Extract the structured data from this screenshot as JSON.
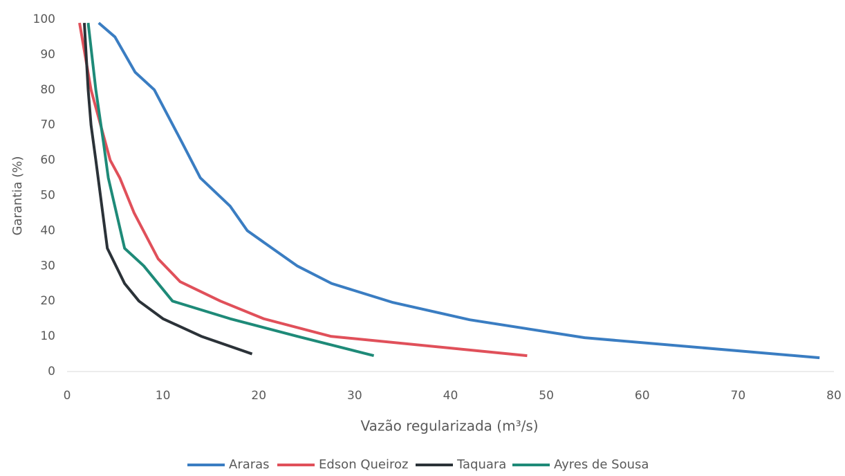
{
  "chart_data": {
    "type": "line",
    "xlabel": "Vazão regularizada (m³/s)",
    "ylabel": "Garantia (%)",
    "xlim": [
      0,
      80
    ],
    "xticks": [
      0,
      10,
      20,
      30,
      40,
      50,
      60,
      70,
      80
    ],
    "ylim": [
      0,
      100
    ],
    "yticks": [
      0,
      10,
      20,
      30,
      40,
      50,
      60,
      70,
      80,
      90,
      100
    ],
    "legend": "bottom",
    "series": [
      {
        "name": "Araras",
        "color": "#3a7dc2",
        "x": [
          3.3,
          5,
          7.1,
          9.1,
          12,
          13.9,
          17,
          18.8,
          24,
          27.6,
          34,
          42,
          54,
          78.5
        ],
        "values": [
          99,
          95,
          85,
          80,
          65,
          55,
          47,
          40,
          30,
          25,
          19.6,
          14.7,
          9.6,
          3.9
        ]
      },
      {
        "name": "Edson Queiroz",
        "color": "#e0505a",
        "x": [
          1.3,
          2.5,
          3.5,
          4.5,
          5.5,
          7,
          9.5,
          11.8,
          16,
          20.5,
          27.5,
          48
        ],
        "values": [
          99,
          80,
          70,
          60,
          55,
          45,
          32,
          25.5,
          20,
          15,
          10,
          4.5
        ]
      },
      {
        "name": "Taquara",
        "color": "#2b3238",
        "x": [
          1.8,
          2.2,
          2.5,
          3,
          4.2,
          6,
          7.5,
          10,
          14,
          19.3
        ],
        "values": [
          99,
          80,
          70,
          60,
          35,
          25,
          20,
          15,
          10,
          5
        ]
      },
      {
        "name": "Ayres de Sousa",
        "color": "#1e8a78",
        "x": [
          2.2,
          3,
          3.8,
          4.3,
          6,
          8,
          11,
          17,
          24,
          32
        ],
        "values": [
          99,
          80,
          65,
          55,
          35,
          30,
          20,
          15,
          10,
          4.5
        ]
      }
    ]
  }
}
